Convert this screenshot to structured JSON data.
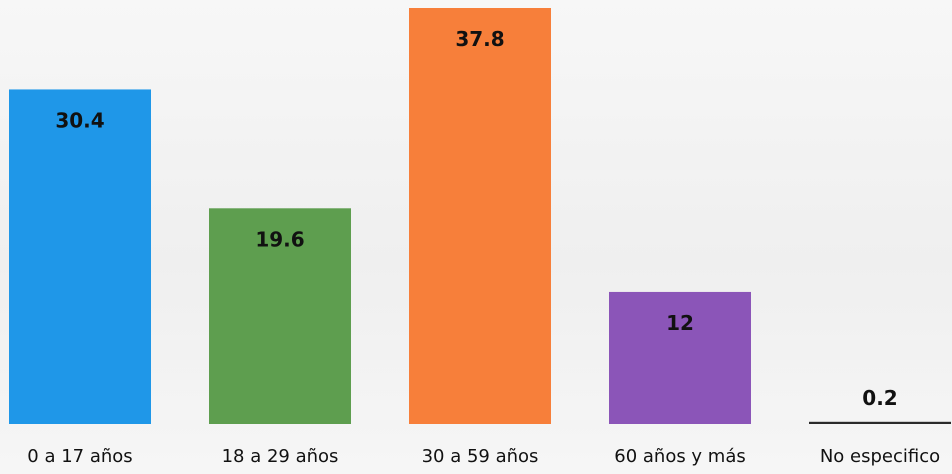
{
  "chart_data": {
    "type": "bar",
    "categories": [
      "0 a 17 años",
      "18 a 29 años",
      "30 a 59 años",
      "60 años y más",
      "No especifico"
    ],
    "values": [
      30.4,
      19.6,
      37.8,
      12,
      0.2
    ],
    "value_labels": [
      "30.4",
      "19.6",
      "37.8",
      "12",
      "0.2"
    ],
    "colors": [
      "#1f97e8",
      "#5e9e4f",
      "#f77f3a",
      "#8b55b8",
      "#2a2a2a"
    ],
    "ylim": [
      0,
      37.8
    ],
    "grid": false,
    "legend": "none"
  }
}
